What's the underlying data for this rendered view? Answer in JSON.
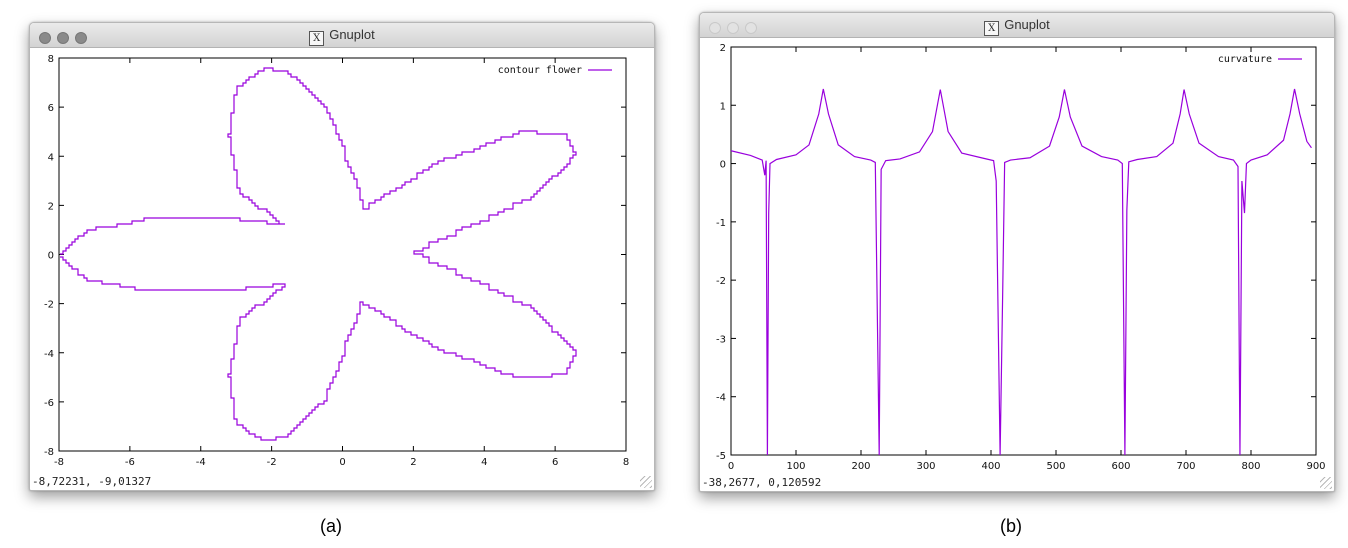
{
  "windows": [
    {
      "title": "Gnuplot",
      "status": "-8,72231, -9,01327",
      "caption": "(a)"
    },
    {
      "title": "Gnuplot",
      "status": "-38,2677,  0,120592",
      "caption": "(b)"
    }
  ],
  "chart_data": [
    {
      "type": "line",
      "title": "",
      "xlabel": "",
      "ylabel": "",
      "xlim": [
        -8,
        8
      ],
      "ylim": [
        -8,
        8
      ],
      "x_ticks": [
        "-8",
        "-6",
        "-4",
        "-2",
        "0",
        "2",
        "4",
        "6",
        "8"
      ],
      "y_ticks": [
        "8",
        "6",
        "4",
        "2",
        "0",
        "-2",
        "-4",
        "-6",
        "-8"
      ],
      "legend": "top-right",
      "grid": false,
      "series": [
        {
          "name": "contour flower",
          "color": "#9900dd",
          "points": [
            [
              -8.0,
              0.0
            ],
            [
              -7.2,
              1.0
            ],
            [
              -5.3,
              1.5
            ],
            [
              -3.4,
              1.5
            ],
            [
              -1.6,
              1.2
            ],
            [
              -2.9,
              2.6
            ],
            [
              -3.2,
              4.9
            ],
            [
              -3.0,
              6.8
            ],
            [
              -2.2,
              7.6
            ],
            [
              -1.5,
              7.4
            ],
            [
              -0.4,
              5.8
            ],
            [
              0.6,
              1.9
            ],
            [
              2.7,
              3.8
            ],
            [
              5.0,
              5.0
            ],
            [
              6.3,
              4.9
            ],
            [
              6.6,
              4.0
            ],
            [
              5.3,
              2.2
            ],
            [
              2.0,
              0.0
            ],
            [
              5.3,
              -2.2
            ],
            [
              6.6,
              -4.0
            ],
            [
              6.3,
              -4.9
            ],
            [
              5.0,
              -5.0
            ],
            [
              2.7,
              -3.8
            ],
            [
              0.6,
              -1.9
            ],
            [
              -0.4,
              -5.8
            ],
            [
              -1.5,
              -7.4
            ],
            [
              -2.2,
              -7.6
            ],
            [
              -3.0,
              -6.8
            ],
            [
              -3.2,
              -4.9
            ],
            [
              -2.9,
              -2.6
            ],
            [
              -1.6,
              -1.2
            ],
            [
              -3.4,
              -1.5
            ],
            [
              -5.3,
              -1.5
            ],
            [
              -7.2,
              -1.0
            ],
            [
              -8.0,
              0.0
            ]
          ]
        }
      ]
    },
    {
      "type": "line",
      "title": "",
      "xlabel": "",
      "ylabel": "",
      "xlim": [
        0,
        900
      ],
      "ylim": [
        -5,
        2
      ],
      "x_ticks": [
        "0",
        "100",
        "200",
        "300",
        "400",
        "500",
        "600",
        "700",
        "800",
        "900"
      ],
      "y_ticks": [
        "2",
        "1",
        "0",
        "-1",
        "-2",
        "-3",
        "-4",
        "-5"
      ],
      "legend": "top-right",
      "grid": false,
      "series": [
        {
          "name": "curvature",
          "color": "#9900dd",
          "points": [
            [
              0,
              0.22
            ],
            [
              30,
              0.14
            ],
            [
              48,
              0.06
            ],
            [
              52,
              -0.2
            ],
            [
              54,
              0.05
            ],
            [
              56,
              -5.0
            ],
            [
              58,
              -0.85
            ],
            [
              60,
              0.0
            ],
            [
              70,
              0.07
            ],
            [
              100,
              0.15
            ],
            [
              120,
              0.32
            ],
            [
              135,
              0.85
            ],
            [
              142,
              1.28
            ],
            [
              150,
              0.85
            ],
            [
              165,
              0.32
            ],
            [
              190,
              0.12
            ],
            [
              215,
              0.06
            ],
            [
              222,
              0.02
            ],
            [
              228,
              -5.0
            ],
            [
              231,
              -0.1
            ],
            [
              238,
              0.05
            ],
            [
              260,
              0.08
            ],
            [
              290,
              0.2
            ],
            [
              310,
              0.55
            ],
            [
              322,
              1.27
            ],
            [
              334,
              0.55
            ],
            [
              355,
              0.18
            ],
            [
              385,
              0.1
            ],
            [
              404,
              0.05
            ],
            [
              408,
              -0.3
            ],
            [
              414,
              -5.0
            ],
            [
              418,
              -2.2
            ],
            [
              421,
              0.02
            ],
            [
              430,
              0.06
            ],
            [
              460,
              0.1
            ],
            [
              490,
              0.3
            ],
            [
              505,
              0.8
            ],
            [
              513,
              1.27
            ],
            [
              522,
              0.8
            ],
            [
              540,
              0.3
            ],
            [
              570,
              0.12
            ],
            [
              595,
              0.06
            ],
            [
              602,
              0.0
            ],
            [
              606,
              -5.0
            ],
            [
              609,
              -0.8
            ],
            [
              612,
              0.03
            ],
            [
              625,
              0.07
            ],
            [
              655,
              0.12
            ],
            [
              680,
              0.35
            ],
            [
              691,
              0.85
            ],
            [
              697,
              1.27
            ],
            [
              705,
              0.85
            ],
            [
              720,
              0.35
            ],
            [
              750,
              0.12
            ],
            [
              773,
              0.06
            ],
            [
              780,
              -0.05
            ],
            [
              783,
              -5.0
            ],
            [
              786,
              -0.3
            ],
            [
              790,
              -0.85
            ],
            [
              793,
              0.0
            ],
            [
              800,
              0.06
            ],
            [
              825,
              0.15
            ],
            [
              850,
              0.4
            ],
            [
              860,
              0.85
            ],
            [
              867,
              1.28
            ],
            [
              875,
              0.85
            ],
            [
              886,
              0.38
            ],
            [
              893,
              0.27
            ]
          ]
        }
      ]
    }
  ]
}
